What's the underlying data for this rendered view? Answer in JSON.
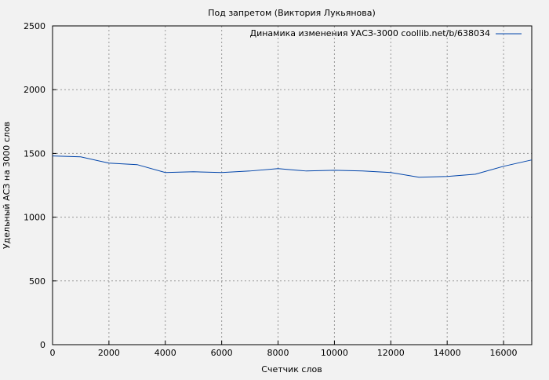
{
  "chart_data": {
    "type": "line",
    "title": "Под запретом (Виктория Лукьянова)",
    "xlabel": "Счетчик слов",
    "ylabel": "Удельный АСЗ на 3000 слов",
    "xlim": [
      0,
      17000
    ],
    "ylim": [
      0,
      2500
    ],
    "xticks": [
      0,
      2000,
      4000,
      6000,
      8000,
      10000,
      12000,
      14000,
      16000
    ],
    "yticks": [
      0,
      500,
      1000,
      1500,
      2000,
      2500
    ],
    "grid": true,
    "legend_position": "top-right",
    "series": [
      {
        "name": "Динамика изменения УАСЗ-3000 coollib.net/b/638034",
        "color": "#0044aa",
        "x": [
          0,
          1000,
          2000,
          3000,
          4000,
          5000,
          6000,
          7000,
          8000,
          9000,
          10000,
          11000,
          12000,
          13000,
          14000,
          15000,
          16000,
          17000
        ],
        "y": [
          1480,
          1473,
          1424,
          1412,
          1350,
          1356,
          1350,
          1362,
          1381,
          1362,
          1368,
          1362,
          1350,
          1313,
          1319,
          1337,
          1399,
          1449
        ]
      }
    ]
  }
}
